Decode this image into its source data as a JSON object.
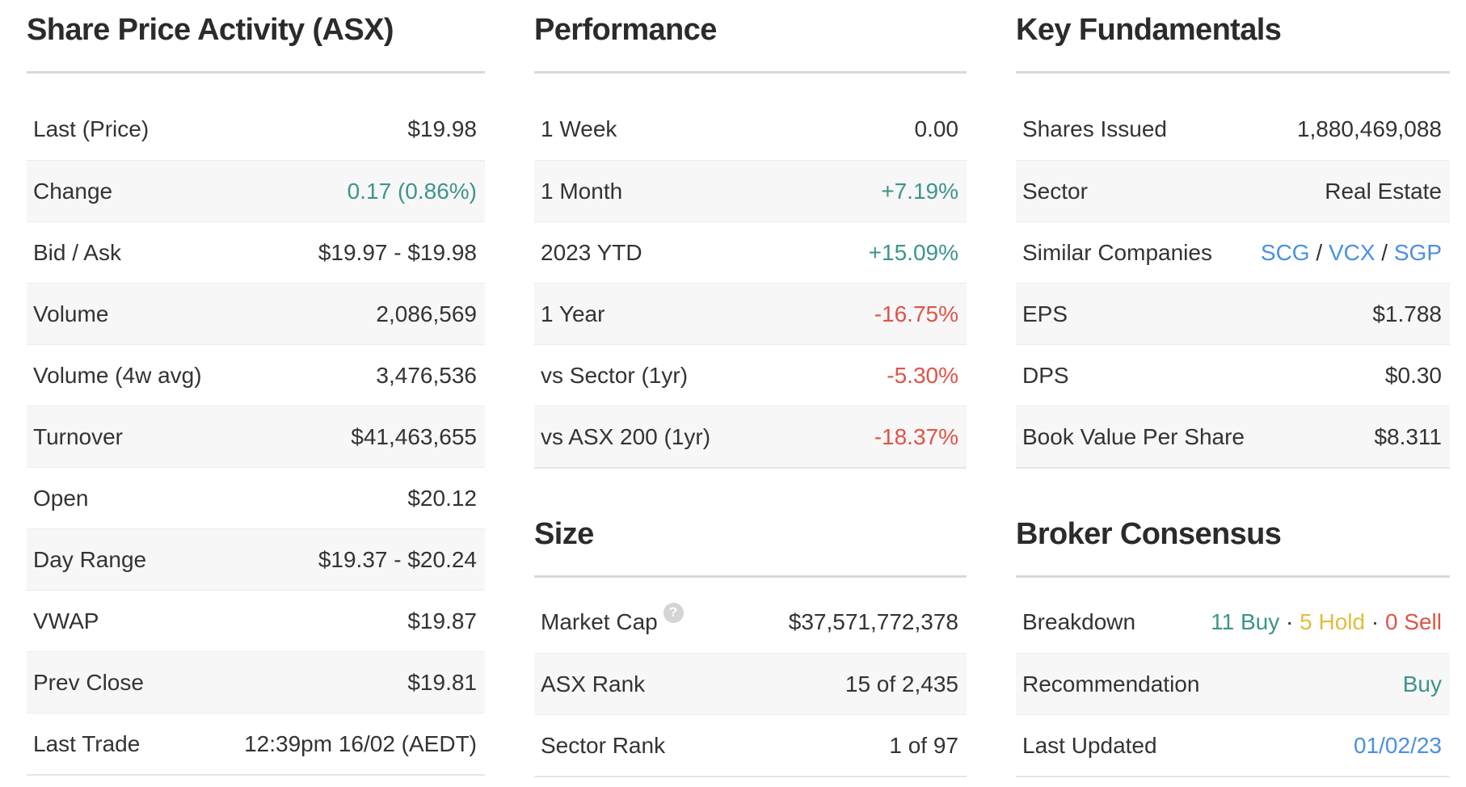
{
  "colors": {
    "positive": "#3d948b",
    "negative": "#df5448",
    "hold": "#e3bc3f",
    "link": "#4a90e2",
    "text": "#333333"
  },
  "help_icon_glyph": "?",
  "columns": [
    {
      "sections": [
        {
          "id": "share-price-activity",
          "title": "Share Price Activity (ASX)",
          "rows": [
            {
              "label": "Last (Price)",
              "value": [
                {
                  "text": "$19.98"
                }
              ]
            },
            {
              "label": "Change",
              "value": [
                {
                  "text": "0.17 (0.86%)",
                  "color": "positive"
                }
              ]
            },
            {
              "label": "Bid / Ask",
              "value": [
                {
                  "text": "$19.97 - $19.98"
                }
              ]
            },
            {
              "label": "Volume",
              "value": [
                {
                  "text": "2,086,569"
                }
              ]
            },
            {
              "label": "Volume (4w avg)",
              "value": [
                {
                  "text": "3,476,536"
                }
              ]
            },
            {
              "label": "Turnover",
              "value": [
                {
                  "text": "$41,463,655"
                }
              ]
            },
            {
              "label": "Open",
              "value": [
                {
                  "text": "$20.12"
                }
              ]
            },
            {
              "label": "Day Range",
              "value": [
                {
                  "text": "$19.37 - $20.24"
                }
              ]
            },
            {
              "label": "VWAP",
              "value": [
                {
                  "text": "$19.87"
                }
              ]
            },
            {
              "label": "Prev Close",
              "value": [
                {
                  "text": "$19.81"
                }
              ]
            },
            {
              "label": "Last Trade",
              "value": [
                {
                  "text": "12:39pm 16/02 (AEDT)"
                }
              ]
            }
          ]
        }
      ]
    },
    {
      "sections": [
        {
          "id": "performance",
          "title": "Performance",
          "rows": [
            {
              "label": "1 Week",
              "value": [
                {
                  "text": "0.00"
                }
              ]
            },
            {
              "label": "1 Month",
              "value": [
                {
                  "text": "+7.19%",
                  "color": "positive"
                }
              ]
            },
            {
              "label": "2023 YTD",
              "value": [
                {
                  "text": "+15.09%",
                  "color": "positive"
                }
              ]
            },
            {
              "label": "1 Year",
              "value": [
                {
                  "text": "-16.75%",
                  "color": "negative"
                }
              ]
            },
            {
              "label": "vs Sector (1yr)",
              "value": [
                {
                  "text": "-5.30%",
                  "color": "negative"
                }
              ]
            },
            {
              "label": "vs ASX 200 (1yr)",
              "value": [
                {
                  "text": "-18.37%",
                  "color": "negative"
                }
              ]
            }
          ]
        },
        {
          "id": "size",
          "title": "Size",
          "rows": [
            {
              "label": "Market Cap",
              "help_icon": true,
              "value": [
                {
                  "text": "$37,571,772,378"
                }
              ]
            },
            {
              "label": "ASX Rank",
              "value": [
                {
                  "text": "15 of 2,435"
                }
              ]
            },
            {
              "label": "Sector Rank",
              "value": [
                {
                  "text": "1 of 97"
                }
              ]
            }
          ]
        }
      ]
    },
    {
      "sections": [
        {
          "id": "key-fundamentals",
          "title": "Key Fundamentals",
          "rows": [
            {
              "label": "Shares Issued",
              "value": [
                {
                  "text": "1,880,469,088"
                }
              ]
            },
            {
              "label": "Sector",
              "value": [
                {
                  "text": "Real Estate"
                }
              ]
            },
            {
              "label": "Similar Companies",
              "value": [
                {
                  "text": "SCG",
                  "link": true,
                  "name": "link-scg"
                },
                {
                  "text": " / "
                },
                {
                  "text": "VCX",
                  "link": true,
                  "name": "link-vcx"
                },
                {
                  "text": " / "
                },
                {
                  "text": "SGP",
                  "link": true,
                  "name": "link-sgp"
                }
              ]
            },
            {
              "label": "EPS",
              "value": [
                {
                  "text": "$1.788"
                }
              ]
            },
            {
              "label": "DPS",
              "value": [
                {
                  "text": "$0.30"
                }
              ]
            },
            {
              "label": "Book Value Per Share",
              "value": [
                {
                  "text": "$8.311"
                }
              ]
            }
          ]
        },
        {
          "id": "broker-consensus",
          "title": "Broker Consensus",
          "rows": [
            {
              "label": "Breakdown",
              "value": [
                {
                  "text": "11 Buy",
                  "color": "positive",
                  "name": "buy-count"
                },
                {
                  "text": " · "
                },
                {
                  "text": "5 Hold",
                  "color": "hold",
                  "name": "hold-count"
                },
                {
                  "text": " · "
                },
                {
                  "text": "0 Sell",
                  "color": "negative",
                  "name": "sell-count"
                }
              ]
            },
            {
              "label": "Recommendation",
              "value": [
                {
                  "text": "Buy",
                  "color": "positive",
                  "name": "recommendation-value"
                }
              ]
            },
            {
              "label": "Last Updated",
              "value": [
                {
                  "text": "01/02/23",
                  "link": true,
                  "name": "link-last-updated"
                }
              ]
            }
          ]
        }
      ]
    }
  ]
}
